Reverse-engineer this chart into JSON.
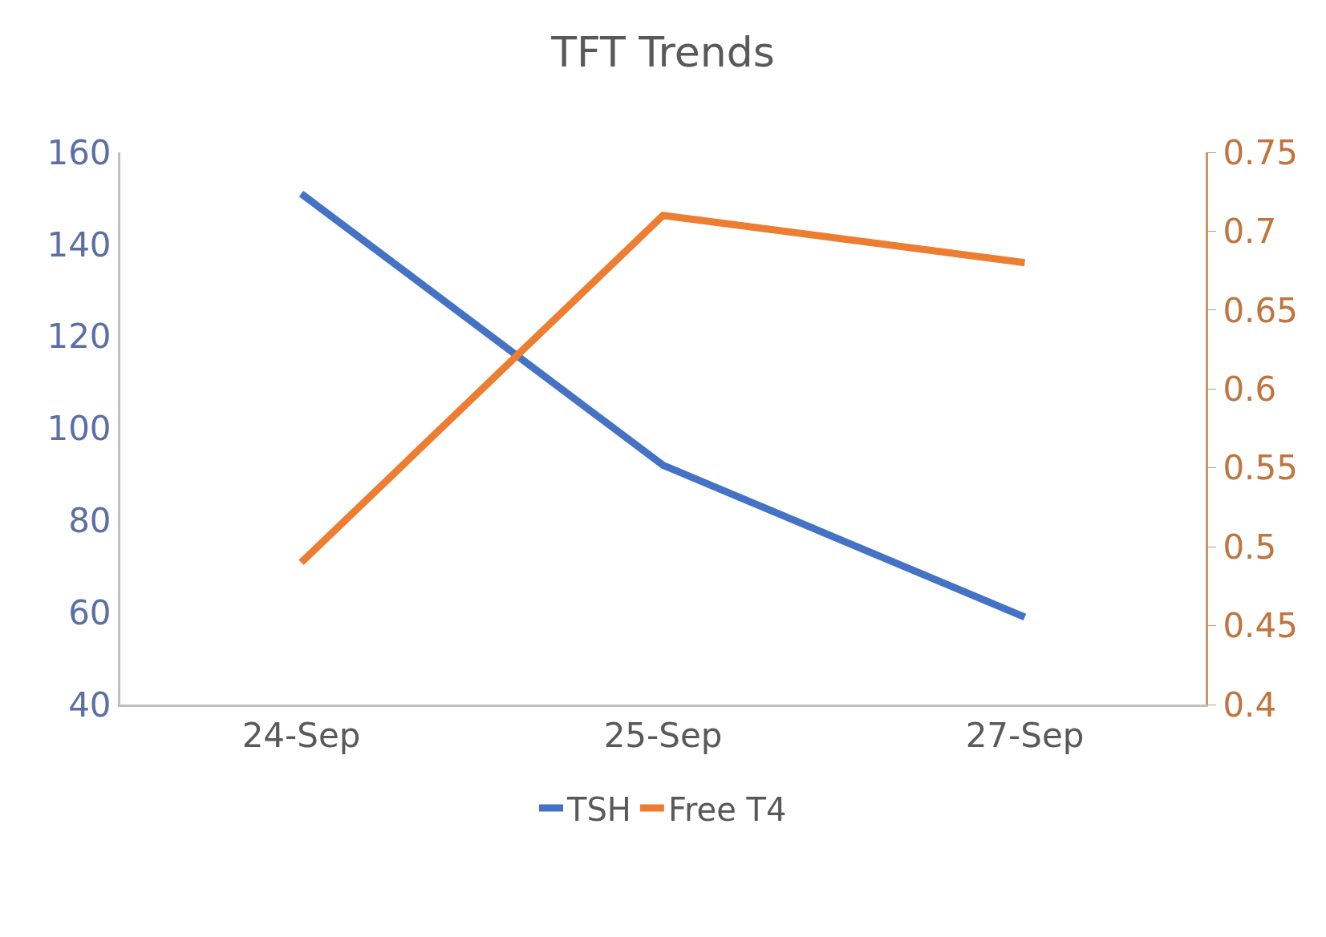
{
  "chart_data": {
    "type": "line",
    "title": "TFT Trends",
    "categories": [
      "24-Sep",
      "25-Sep",
      "27-Sep"
    ],
    "series": [
      {
        "name": "TSH",
        "color": "#4472c4",
        "values": [
          151,
          92,
          59
        ]
      },
      {
        "name": "Free T4",
        "color": "#ed7d31",
        "axis": "y2",
        "values": [
          0.49,
          0.71,
          0.68
        ]
      }
    ],
    "ylim": [
      40,
      160
    ],
    "yticks": [
      40,
      60,
      80,
      100,
      120,
      140,
      160
    ],
    "y2lim": [
      0.4,
      0.75
    ],
    "y2ticks": [
      0.4,
      0.45,
      0.5,
      0.55,
      0.6,
      0.65,
      0.7,
      0.75
    ],
    "grid": false,
    "legend": "bottom",
    "marker": "none",
    "line_style": "solid"
  }
}
